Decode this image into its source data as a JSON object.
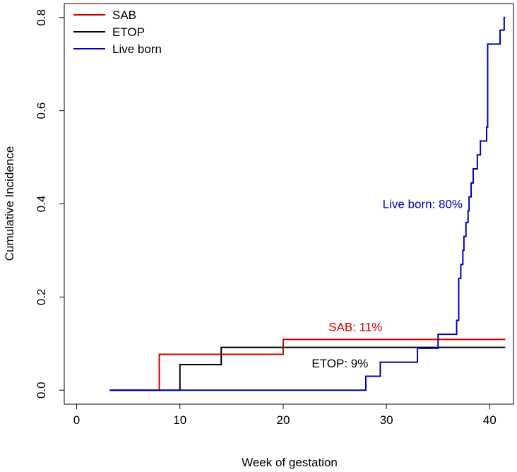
{
  "chart_data": {
    "type": "line",
    "step": true,
    "title": "",
    "xlabel": "Week of gestation",
    "ylabel": "Cumulative Incidence",
    "xlim": [
      -1.2,
      42.3
    ],
    "ylim": [
      -0.03,
      0.83
    ],
    "x_ticks": [
      0,
      10,
      20,
      30,
      40
    ],
    "y_ticks": [
      0.0,
      0.2,
      0.4,
      0.6,
      0.8
    ],
    "x_tick_labels": [
      "0",
      "10",
      "20",
      "30",
      "40"
    ],
    "y_tick_labels": [
      "0.0",
      "0.2",
      "0.4",
      "0.6",
      "0.8"
    ],
    "grid": false,
    "legend": {
      "position": "top-left",
      "entries": [
        "SAB",
        "ETOP",
        "Live born"
      ]
    },
    "series": [
      {
        "name": "SAB",
        "color": "#cc0000",
        "x": [
          3.2,
          8,
          20,
          41.5
        ],
        "y": [
          0.0,
          0.077,
          0.109,
          0.109
        ]
      },
      {
        "name": "ETOP",
        "color": "#000000",
        "x": [
          3.2,
          10,
          14,
          20,
          41.5
        ],
        "y": [
          0.0,
          0.055,
          0.092,
          0.092,
          0.092
        ]
      },
      {
        "name": "Live born",
        "color": "#0000bb",
        "x": [
          3.2,
          28,
          29.4,
          33,
          35,
          36.8,
          37.0,
          37.2,
          37.4,
          37.5,
          37.7,
          37.9,
          38.0,
          38.2,
          38.4,
          38.8,
          39.1,
          39.7,
          39.8,
          40.0,
          41.0,
          41.4,
          41.5
        ],
        "y": [
          0.0,
          0.03,
          0.06,
          0.09,
          0.12,
          0.15,
          0.24,
          0.27,
          0.3,
          0.33,
          0.36,
          0.385,
          0.415,
          0.445,
          0.475,
          0.505,
          0.535,
          0.565,
          0.743,
          0.743,
          0.773,
          0.8,
          0.8
        ]
      }
    ],
    "annotations": [
      {
        "text": "Live born: 80%",
        "x": 33.5,
        "y": 0.4,
        "color": "#0000bb"
      },
      {
        "text": "SAB: 11%",
        "x": 27,
        "y": 0.136,
        "color": "#cc0000"
      },
      {
        "text": "ETOP: 9%",
        "x": 25.5,
        "y": 0.058,
        "color": "#000000"
      }
    ]
  }
}
